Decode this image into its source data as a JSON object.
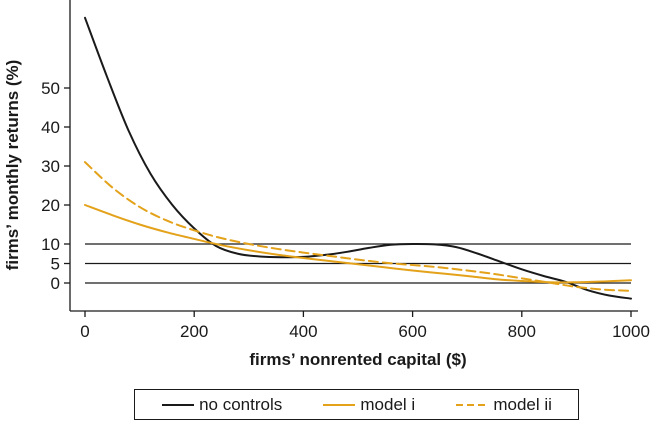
{
  "chart_data": {
    "type": "line",
    "title": "",
    "xlabel": "firms’ nonrented capital ($)",
    "ylabel": "firms’ monthly returns (%)",
    "xlim": [
      -20,
      1010
    ],
    "ylim": [
      -9,
      69
    ],
    "x_ticks": [
      "0",
      "200",
      "400",
      "600",
      "800",
      "1000"
    ],
    "y_ticks": [
      "0",
      "5",
      "10",
      "20",
      "30",
      "40",
      "50"
    ],
    "x_tick_values": [
      0,
      200,
      400,
      600,
      800,
      1000
    ],
    "y_tick_values": [
      0,
      5,
      10,
      20,
      30,
      40,
      50
    ],
    "reference_lines": [
      0,
      5,
      10
    ],
    "grid": false,
    "legend_position": "bottom",
    "series": [
      {
        "name": "no controls",
        "color": "#1a1a1a",
        "dash": "solid",
        "x": [
          0,
          40,
          80,
          120,
          160,
          200,
          240,
          280,
          320,
          360,
          400,
          440,
          480,
          520,
          560,
          600,
          640,
          680,
          720,
          760,
          800,
          840,
          880,
          920,
          960,
          1000
        ],
        "y": [
          68,
          53,
          39,
          28,
          20,
          14,
          9.5,
          7.5,
          6.8,
          6.6,
          6.7,
          7.2,
          8.0,
          9.0,
          9.8,
          10.0,
          9.9,
          9.2,
          7.5,
          5.5,
          3.5,
          1.8,
          0.3,
          -1.8,
          -3.2,
          -4.0
        ]
      },
      {
        "name": "model i",
        "color": "#e3a21a",
        "dash": "solid",
        "x": [
          0,
          50,
          100,
          150,
          200,
          250,
          300,
          350,
          400,
          450,
          500,
          550,
          600,
          650,
          700,
          750,
          800,
          850,
          900,
          950,
          1000
        ],
        "y": [
          20,
          17.4,
          15.0,
          13.0,
          11.3,
          9.7,
          8.4,
          7.3,
          6.4,
          5.6,
          4.8,
          4.0,
          3.2,
          2.5,
          1.8,
          1.0,
          0.5,
          0.2,
          0.2,
          0.4,
          0.7
        ]
      },
      {
        "name": "model ii",
        "color": "#e3a21a",
        "dash": "dashed",
        "x": [
          0,
          50,
          100,
          150,
          200,
          250,
          300,
          350,
          400,
          450,
          500,
          550,
          600,
          650,
          700,
          750,
          800,
          850,
          900,
          950,
          1000
        ],
        "y": [
          31,
          24.5,
          19.5,
          16.0,
          13.5,
          11.5,
          10.0,
          8.8,
          7.8,
          6.9,
          6.0,
          5.2,
          4.6,
          4.0,
          3.2,
          2.3,
          1.2,
          0.1,
          -1.0,
          -1.7,
          -2.0
        ]
      }
    ]
  }
}
